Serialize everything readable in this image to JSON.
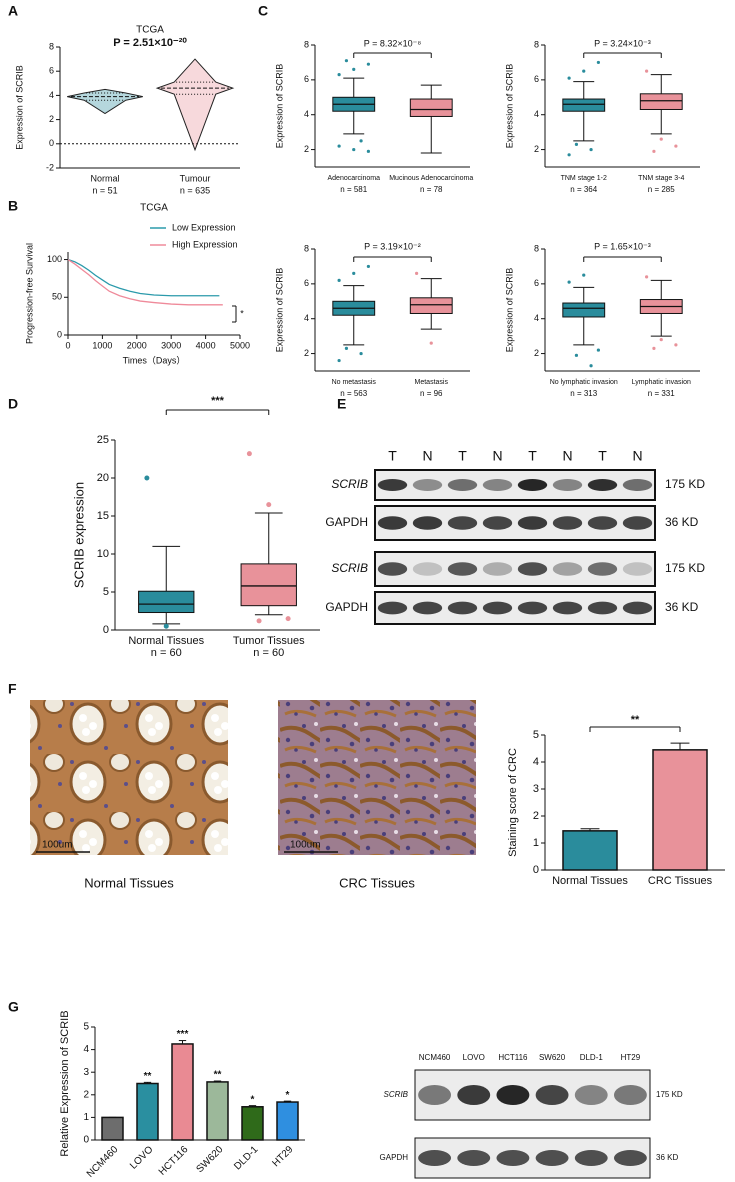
{
  "panels": [
    "A",
    "B",
    "C",
    "D",
    "E",
    "F",
    "G"
  ],
  "chart_data": [
    {
      "type": "violin",
      "title": "TCGA",
      "annotation": "P = 2.51×10⁻²⁰",
      "ylabel": "Expression of SCRIB",
      "ylim": [
        -2,
        8
      ],
      "yticks": [
        -2,
        0,
        2,
        4,
        6,
        8
      ],
      "hline": 0,
      "categories": [
        "Normal",
        "Tumour"
      ],
      "n_labels": [
        "n = 51",
        "n = 635"
      ],
      "colors": [
        "#2b8c9e",
        "#e8929a"
      ],
      "boxes": [
        {
          "min": 2.5,
          "q1": 3.6,
          "median": 3.9,
          "q3": 4.2,
          "max": 4.5
        },
        {
          "min": -0.5,
          "q1": 4.1,
          "median": 4.6,
          "q3": 5.1,
          "max": 7.0
        }
      ]
    },
    {
      "type": "line",
      "title": "TCGA",
      "xlabel": "Times（Days）",
      "ylabel": "Progression-free Survival",
      "xlim": [
        0,
        5000
      ],
      "xticks": [
        0,
        1000,
        2000,
        3000,
        4000,
        5000
      ],
      "ylim": [
        0,
        110
      ],
      "yticks": [
        0,
        50,
        100
      ],
      "annotation": "*",
      "series": [
        {
          "name": "Low Expression",
          "color": "#2b9aab",
          "x": [
            0,
            200,
            400,
            600,
            800,
            1000,
            1200,
            1500,
            1800,
            2100,
            2500,
            3000,
            3500,
            4000,
            4400
          ],
          "values": [
            100,
            97,
            92,
            86,
            79,
            73,
            67,
            62,
            58,
            55,
            53,
            52,
            52,
            52,
            52
          ]
        },
        {
          "name": "High Expression",
          "color": "#ef8a9a",
          "x": [
            0,
            200,
            400,
            600,
            800,
            1000,
            1200,
            1500,
            1800,
            2100,
            2500,
            3000,
            3500,
            4000,
            4500
          ],
          "values": [
            100,
            94,
            87,
            80,
            72,
            65,
            58,
            52,
            48,
            45,
            43,
            41,
            40,
            40,
            40
          ]
        }
      ]
    },
    {
      "type": "box",
      "annotation": "P = 8.32×10⁻⁸",
      "ylabel": "Expression of SCRIB",
      "ylim": [
        1,
        8
      ],
      "yticks": [
        2,
        4,
        6,
        8
      ],
      "categories": [
        "Adenocarcinoma",
        "Mucinous Adenocarcinoma"
      ],
      "n_labels": [
        "n = 581",
        "n = 78"
      ],
      "colors": [
        "#2a8c9c",
        "#e8929a"
      ],
      "boxes": [
        {
          "min": 2.9,
          "q1": 4.2,
          "median": 4.6,
          "q3": 5.0,
          "max": 6.1,
          "outliers": [
            6.3,
            6.6,
            6.9,
            7.1,
            2.5,
            2.2,
            2.0,
            1.9
          ]
        },
        {
          "min": 1.8,
          "q1": 3.9,
          "median": 4.3,
          "q3": 4.9,
          "max": 5.7,
          "outliers": []
        }
      ]
    },
    {
      "type": "box",
      "annotation": "P = 3.24×10⁻³",
      "ylabel": "Expression of SCRIB",
      "ylim": [
        1,
        8
      ],
      "yticks": [
        2,
        4,
        6,
        8
      ],
      "categories": [
        "TNM stage 1-2",
        "TNM stage 3-4"
      ],
      "n_labels": [
        "n = 364",
        "n = 285"
      ],
      "colors": [
        "#2a8c9c",
        "#e8929a"
      ],
      "boxes": [
        {
          "min": 2.5,
          "q1": 4.2,
          "median": 4.6,
          "q3": 4.9,
          "max": 5.9,
          "outliers": [
            6.1,
            6.5,
            7.0,
            2.3,
            2.0,
            1.7
          ]
        },
        {
          "min": 2.9,
          "q1": 4.3,
          "median": 4.8,
          "q3": 5.2,
          "max": 6.3,
          "outliers": [
            6.5,
            2.6,
            2.2,
            1.9
          ]
        }
      ]
    },
    {
      "type": "box",
      "annotation": "P = 3.19×10⁻²",
      "ylabel": "Expression of SCRIB",
      "ylim": [
        1,
        8
      ],
      "yticks": [
        2,
        4,
        6,
        8
      ],
      "categories": [
        "No metastasis",
        "Metastasis"
      ],
      "n_labels": [
        "n = 563",
        "n = 96"
      ],
      "colors": [
        "#2a8c9c",
        "#e8929a"
      ],
      "boxes": [
        {
          "min": 2.5,
          "q1": 4.2,
          "median": 4.6,
          "q3": 5.0,
          "max": 5.9,
          "outliers": [
            6.2,
            6.6,
            7.0,
            2.3,
            2.0,
            1.6
          ]
        },
        {
          "min": 3.4,
          "q1": 4.3,
          "median": 4.8,
          "q3": 5.2,
          "max": 6.3,
          "outliers": [
            6.6,
            2.6
          ]
        }
      ]
    },
    {
      "type": "box",
      "annotation": "P = 1.65×10⁻³",
      "ylabel": "Expression of SCRIB",
      "ylim": [
        1,
        8
      ],
      "yticks": [
        2,
        4,
        6,
        8
      ],
      "categories": [
        "No lymphatic invasion",
        "Lymphatic invasion"
      ],
      "n_labels": [
        "n = 313",
        "n = 331"
      ],
      "colors": [
        "#2a8c9c",
        "#e8929a"
      ],
      "boxes": [
        {
          "min": 2.5,
          "q1": 4.1,
          "median": 4.6,
          "q3": 4.9,
          "max": 5.8,
          "outliers": [
            6.1,
            6.5,
            2.2,
            1.9,
            1.3
          ]
        },
        {
          "min": 3.0,
          "q1": 4.3,
          "median": 4.7,
          "q3": 5.1,
          "max": 6.2,
          "outliers": [
            6.4,
            2.8,
            2.5,
            2.3
          ]
        }
      ]
    },
    {
      "type": "box",
      "annotation": "***",
      "ylabel": "SCRIB expression",
      "ylim": [
        0,
        25
      ],
      "yticks": [
        0,
        5,
        10,
        15,
        20,
        25
      ],
      "categories": [
        "Normal Tissues",
        "Tumor Tissues"
      ],
      "n_labels": [
        "n = 60",
        "n = 60"
      ],
      "colors": [
        "#2a8c9c",
        "#e8929a"
      ],
      "boxes": [
        {
          "min": 0.8,
          "q1": 2.3,
          "median": 3.4,
          "q3": 5.1,
          "max": 11,
          "outliers": [
            20,
            0.5
          ]
        },
        {
          "min": 2,
          "q1": 3.2,
          "median": 5.8,
          "q3": 8.7,
          "max": 15.4,
          "outliers": [
            23.2,
            16.5,
            1.5,
            1.2
          ]
        }
      ]
    },
    {
      "type": "bar",
      "annotation": "**",
      "ylabel": "Staining score of CRC",
      "ylim": [
        0,
        5
      ],
      "yticks": [
        0,
        1,
        2,
        3,
        4,
        5
      ],
      "categories": [
        "Normal Tissues",
        "CRC Tissues"
      ],
      "values": [
        1.45,
        4.45
      ],
      "errors": [
        0.08,
        0.25
      ],
      "colors": [
        "#2a8c9c",
        "#e8929a"
      ]
    },
    {
      "type": "bar",
      "ylabel": "Relative Expression of SCRIB",
      "ylim": [
        0,
        5
      ],
      "yticks": [
        0,
        1,
        2,
        3,
        4,
        5
      ],
      "categories": [
        "NCM460",
        "LOVO",
        "HCT116",
        "SW620",
        "DLD-1",
        "HT29"
      ],
      "values": [
        1,
        2.5,
        4.25,
        2.57,
        1.47,
        1.68
      ],
      "errors": [
        0,
        0.05,
        0.15,
        0.04,
        0.05,
        0.04
      ],
      "annotations": [
        null,
        "**",
        "***",
        "**",
        "*",
        "*"
      ],
      "colors": [
        "#6d6d6d",
        "#2a8fa0",
        "#e98a93",
        "#9cb89a",
        "#2f6a1a",
        "#2f8fe0"
      ]
    }
  ],
  "blot_e": {
    "lanes": [
      "T",
      "N",
      "T",
      "N",
      "T",
      "N",
      "T",
      "N"
    ],
    "rows": [
      {
        "label": "SCRIB",
        "size": "175 KD"
      },
      {
        "label": "GAPDH",
        "size": "36 KD"
      },
      {
        "label": "SCRIB",
        "size": "175 KD"
      },
      {
        "label": "GAPDH",
        "size": "36 KD"
      }
    ]
  },
  "histology": [
    {
      "caption": "Normal Tissues",
      "scale": "100um"
    },
    {
      "caption": "CRC Tissues",
      "scale": "100um"
    }
  ],
  "blot_g": {
    "lanes": [
      "NCM460",
      "LOVO",
      "HCT116",
      "SW620",
      "DLD-1",
      "HT29"
    ],
    "rows": [
      {
        "label": "SCRIB",
        "size": "175 KD"
      },
      {
        "label": "GAPDH",
        "size": "36 KD"
      }
    ]
  }
}
